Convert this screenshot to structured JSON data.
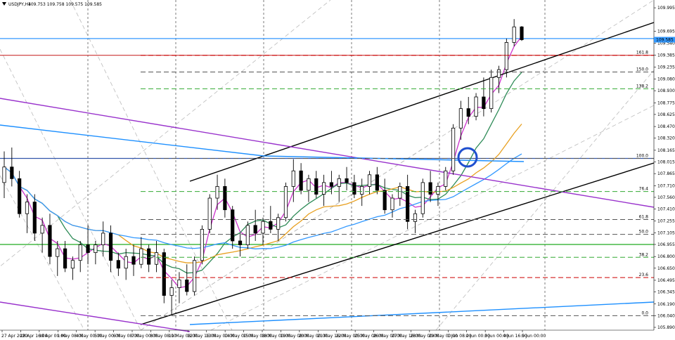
{
  "chart_data": {
    "type": "candlestick",
    "title": "USDJPY,H4",
    "ohlc_header": "109.753 109.758 109.575 109.585",
    "current_price": "109.585",
    "price_ticks": [
      "109.995",
      "109.695",
      "109.540",
      "109.385",
      "109.235",
      "109.080",
      "108.930",
      "108.775",
      "108.625",
      "108.470",
      "108.320",
      "108.165",
      "108.015",
      "107.865",
      "107.710",
      "107.560",
      "107.410",
      "107.255",
      "107.105",
      "106.955",
      "106.800",
      "106.650",
      "106.495",
      "106.345",
      "106.190",
      "106.040",
      "105.890"
    ],
    "time_ticks": [
      "27 Apr 2020",
      "28 Apr 16:00",
      "30 Apr 00:00",
      "1 May 08:00",
      "4 May 00:00",
      "5 May 00:00",
      "6 May 08:00",
      "7 May 00:00",
      "8 May 08:00",
      "11 May 08:00",
      "12 May 16:00",
      "13 May 00:00",
      "14 May 00:00",
      "15 May 08:00",
      "18 May 00:00",
      "19 May 08:00",
      "20 May 00:00",
      "21 May 16:00",
      "22 May 00:00",
      "25 May 08:00",
      "26 May 00:00",
      "27 May 16:00",
      "28 May 00:00",
      "29 May 00:00",
      "1 Jun 08:00",
      "2 Jun 00:00",
      "3 Jun 00:00",
      "4 Jun 16:00",
      "5 Jun 00:00"
    ],
    "fib_levels": [
      {
        "label": "161.8",
        "price": 109.385,
        "color": "#cc0000"
      },
      {
        "label": "150.0",
        "price": 109.17,
        "color": "#555555"
      },
      {
        "label": "138.2",
        "price": 108.955,
        "color": "#33aa33"
      },
      {
        "label": "100.0",
        "price": 108.06,
        "color": "#555555"
      },
      {
        "label": "76.4",
        "price": 107.635,
        "color": "#33aa33"
      },
      {
        "label": "61.8",
        "price": 107.275,
        "color": "#555555"
      },
      {
        "label": "50.0",
        "price": 107.085,
        "color": "#555555"
      },
      {
        "label": "38.2",
        "price": 106.79,
        "color": "#33aa33"
      },
      {
        "label": "23.6",
        "price": 106.53,
        "color": "#cc0000"
      },
      {
        "label": "0.0",
        "price": 106.04,
        "color": "#555555"
      }
    ],
    "horizontal_lines": [
      {
        "price": 109.6,
        "color": "#3399ff"
      },
      {
        "price": 109.385,
        "color": "#cc3333"
      },
      {
        "price": 108.06,
        "color": "#3355aa"
      },
      {
        "price": 106.955,
        "color": "#22aa22"
      }
    ],
    "ylim": [
      105.89,
      110.05
    ],
    "candles": [
      [
        107.75,
        108.15,
        107.55,
        107.95
      ],
      [
        107.95,
        108.2,
        107.7,
        107.8
      ],
      [
        107.8,
        107.9,
        107.3,
        107.35
      ],
      [
        107.35,
        107.6,
        107.1,
        107.5
      ],
      [
        107.5,
        107.6,
        107.0,
        107.1
      ],
      [
        107.1,
        107.3,
        106.85,
        107.2
      ],
      [
        107.2,
        107.35,
        106.7,
        106.8
      ],
      [
        106.8,
        107.0,
        106.55,
        106.9
      ],
      [
        106.9,
        107.0,
        106.6,
        106.65
      ],
      [
        106.65,
        106.8,
        106.5,
        106.75
      ],
      [
        106.75,
        107.0,
        106.6,
        106.95
      ],
      [
        106.95,
        107.2,
        106.7,
        106.85
      ],
      [
        106.85,
        107.0,
        106.7,
        106.95
      ],
      [
        106.95,
        107.25,
        106.8,
        107.1
      ],
      [
        107.1,
        107.2,
        106.6,
        106.75
      ],
      [
        106.75,
        106.85,
        106.55,
        106.65
      ],
      [
        106.65,
        106.9,
        106.5,
        106.8
      ],
      [
        106.8,
        106.95,
        106.55,
        106.7
      ],
      [
        106.7,
        107.05,
        106.65,
        106.9
      ],
      [
        106.9,
        106.95,
        106.6,
        106.7
      ],
      [
        106.7,
        107.0,
        106.6,
        106.85
      ],
      [
        106.85,
        106.9,
        106.2,
        106.3
      ],
      [
        106.3,
        106.5,
        106.05,
        106.4
      ],
      [
        106.4,
        106.6,
        106.2,
        106.5
      ],
      [
        106.5,
        106.7,
        106.3,
        106.35
      ],
      [
        106.35,
        106.8,
        106.3,
        106.75
      ],
      [
        106.75,
        107.2,
        106.7,
        107.15
      ],
      [
        107.15,
        107.6,
        107.1,
        107.55
      ],
      [
        107.55,
        107.85,
        107.4,
        107.7
      ],
      [
        107.7,
        107.8,
        107.3,
        107.4
      ],
      [
        107.4,
        107.45,
        106.9,
        107.0
      ],
      [
        107.0,
        107.1,
        106.8,
        106.95
      ],
      [
        106.95,
        107.25,
        106.9,
        107.2
      ],
      [
        107.2,
        107.4,
        107.0,
        107.1
      ],
      [
        107.1,
        107.3,
        106.95,
        107.25
      ],
      [
        107.25,
        107.45,
        107.1,
        107.15
      ],
      [
        107.15,
        107.35,
        107.0,
        107.3
      ],
      [
        107.3,
        107.75,
        107.25,
        107.7
      ],
      [
        107.7,
        108.05,
        107.5,
        107.9
      ],
      [
        107.9,
        108.0,
        107.6,
        107.65
      ],
      [
        107.65,
        107.85,
        107.5,
        107.8
      ],
      [
        107.8,
        107.9,
        107.55,
        107.6
      ],
      [
        107.6,
        107.85,
        107.45,
        107.75
      ],
      [
        107.75,
        107.9,
        107.6,
        107.7
      ],
      [
        107.7,
        107.85,
        107.5,
        107.8
      ],
      [
        107.8,
        107.95,
        107.65,
        107.75
      ],
      [
        107.75,
        107.85,
        107.55,
        107.6
      ],
      [
        107.6,
        107.8,
        107.45,
        107.7
      ],
      [
        107.7,
        107.9,
        107.6,
        107.85
      ],
      [
        107.85,
        107.95,
        107.6,
        107.65
      ],
      [
        107.65,
        107.8,
        107.35,
        107.4
      ],
      [
        107.4,
        107.6,
        107.3,
        107.55
      ],
      [
        107.55,
        107.75,
        107.45,
        107.7
      ],
      [
        107.7,
        107.85,
        107.15,
        107.25
      ],
      [
        107.25,
        107.4,
        107.1,
        107.35
      ],
      [
        107.35,
        107.8,
        107.3,
        107.75
      ],
      [
        107.75,
        107.9,
        107.5,
        107.6
      ],
      [
        107.6,
        107.75,
        107.45,
        107.7
      ],
      [
        107.7,
        107.95,
        107.65,
        107.9
      ],
      [
        107.9,
        108.5,
        107.85,
        108.45
      ],
      [
        108.45,
        108.8,
        108.3,
        108.7
      ],
      [
        108.7,
        108.85,
        108.5,
        108.6
      ],
      [
        108.6,
        108.9,
        108.55,
        108.85
      ],
      [
        108.85,
        109.1,
        108.6,
        108.7
      ],
      [
        108.7,
        109.2,
        108.65,
        109.1
      ],
      [
        109.1,
        109.25,
        108.9,
        109.2
      ],
      [
        109.2,
        109.6,
        109.1,
        109.55
      ],
      [
        109.55,
        109.85,
        109.5,
        109.75
      ],
      [
        109.75,
        109.76,
        109.57,
        109.585
      ]
    ]
  }
}
